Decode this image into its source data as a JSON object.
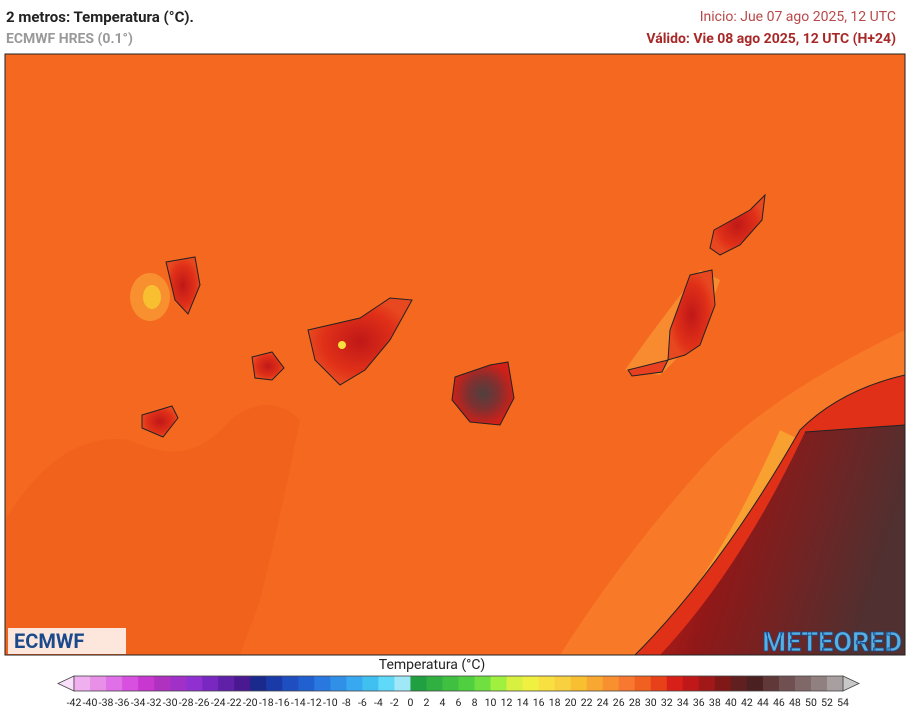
{
  "header": {
    "title": "2 metros: Temperatura (°C).",
    "subtitle": "ECMWF HRES (0.1°)",
    "run": "Inicio: Jue 07 ago 2025, 12 UTC",
    "valid": "Válido: Vie 08 ago 2025, 12 UTC (H+24)"
  },
  "logos": {
    "left": "ECMWF",
    "right": "METEORED"
  },
  "legend": {
    "title": "Temperatura (°C)",
    "ticks": [
      -42,
      -40,
      -38,
      -36,
      -34,
      -32,
      -30,
      -28,
      -26,
      -24,
      -22,
      -20,
      -18,
      -16,
      -14,
      -12,
      -10,
      -8,
      -6,
      -4,
      -2,
      0,
      2,
      4,
      6,
      8,
      10,
      12,
      14,
      16,
      18,
      20,
      22,
      24,
      26,
      28,
      30,
      32,
      34,
      36,
      38,
      40,
      42,
      44,
      46,
      48,
      50,
      52,
      54
    ],
    "low_color": "#fbe0fb",
    "high_color": "#c8c8c8",
    "colors": [
      "#f0b0f0",
      "#e890e8",
      "#e070e8",
      "#d850e0",
      "#c838d0",
      "#b030c0",
      "#a030c8",
      "#9030d0",
      "#7828c0",
      "#6020a8",
      "#4a1890",
      "#1a2a8c",
      "#1a3aa8",
      "#1e4ec0",
      "#2060d0",
      "#2878e0",
      "#3090e8",
      "#38a8f0",
      "#40c0f0",
      "#60d8f8",
      "#a0e8f8",
      "#20a040",
      "#30b040",
      "#40c040",
      "#50d040",
      "#70e040",
      "#a0f040",
      "#d8f040",
      "#f0f040",
      "#f8e040",
      "#f8d040",
      "#f8c030",
      "#f8a830",
      "#f89030",
      "#f87830",
      "#f06020",
      "#e84018",
      "#d82018",
      "#c01818",
      "#a01818",
      "#801818",
      "#602020",
      "#4a2020",
      "#603838",
      "#705050",
      "#806868",
      "#908080",
      "#a8a0a0"
    ]
  }
}
